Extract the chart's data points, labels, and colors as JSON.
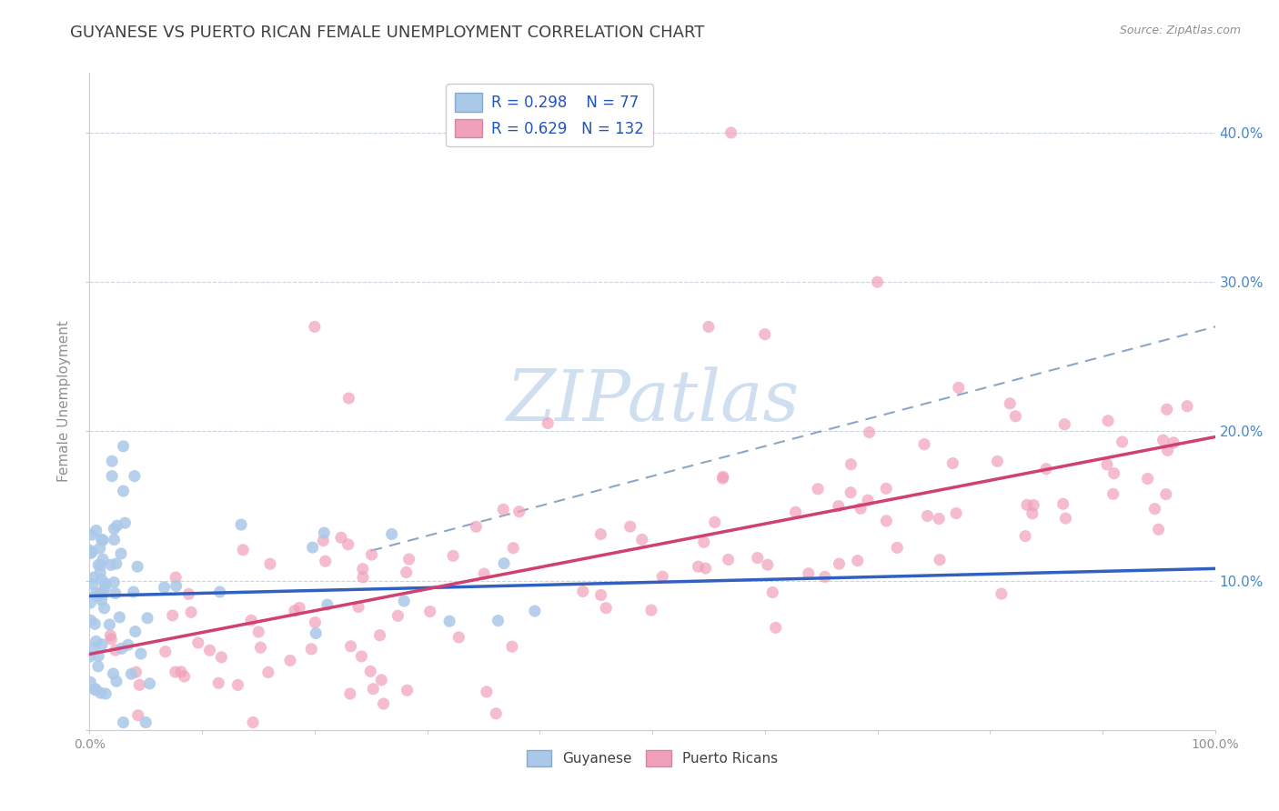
{
  "title": "GUYANESE VS PUERTO RICAN FEMALE UNEMPLOYMENT CORRELATION CHART",
  "source": "Source: ZipAtlas.com",
  "ylabel": "Female Unemployment",
  "xlim": [
    0.0,
    1.0
  ],
  "ylim": [
    0.0,
    0.44
  ],
  "guyanese_R": 0.298,
  "guyanese_N": 77,
  "puertoRican_R": 0.629,
  "puertoRican_N": 132,
  "guyanese_color": "#aac8e8",
  "guyanese_line_color": "#3060c0",
  "puertorican_color": "#f0a0b8",
  "puertorican_line_color": "#d04070",
  "dashed_line_color": "#7090b8",
  "background_color": "#ffffff",
  "watermark_color": "#d0dff0",
  "grid_color": "#c8d4e0",
  "title_color": "#404040",
  "title_fontsize": 13,
  "axis_label_color": "#909090",
  "tick_color": "#909090",
  "right_tick_color": "#4488cc"
}
